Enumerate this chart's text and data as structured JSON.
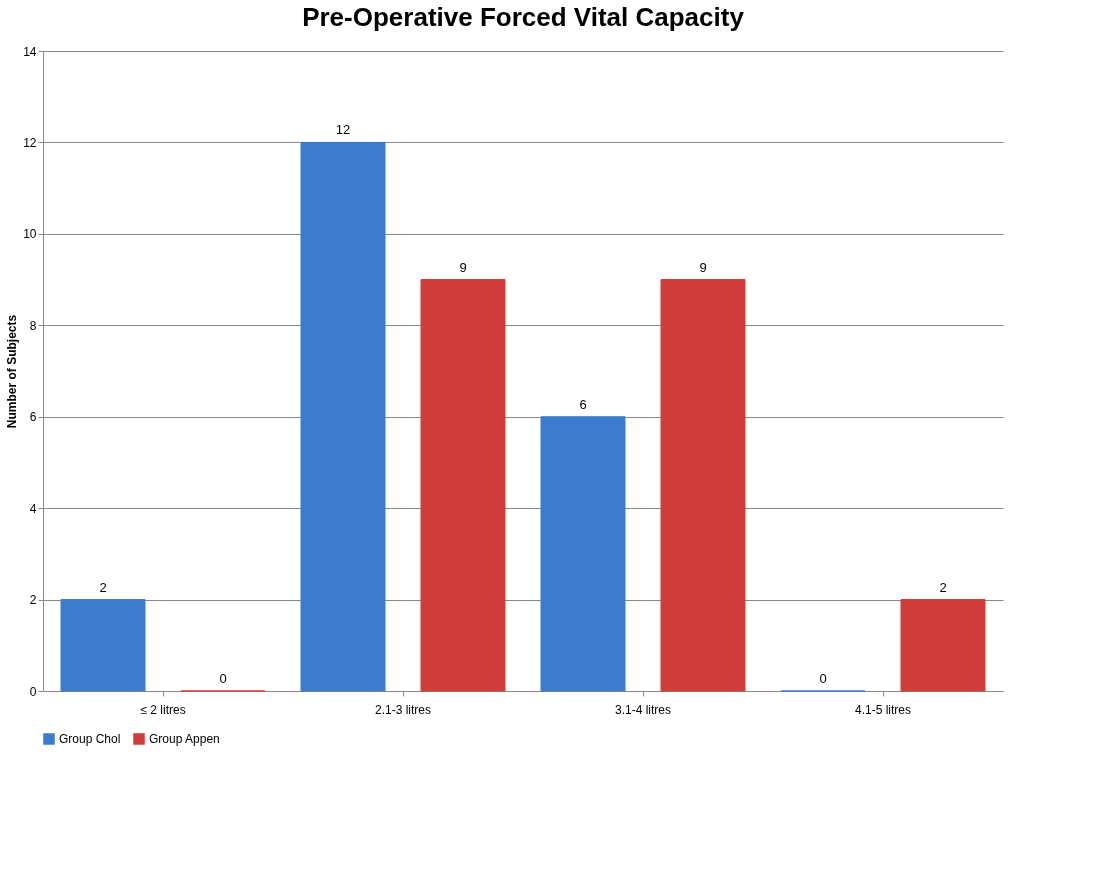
{
  "chart_data": {
    "type": "bar",
    "title": "Pre-Operative Forced Vital Capacity",
    "ylabel": "Number of Subjects",
    "categories": [
      "≤ 2 litres",
      "2.1-3 litres",
      "3.1-4 litres",
      "4.1-5 litres"
    ],
    "series": [
      {
        "name": "Group Chol",
        "color": "#3d7ccc",
        "values": [
          2,
          12,
          6,
          0
        ]
      },
      {
        "name": "Group Appen",
        "color": "#d03c3a",
        "values": [
          0,
          9,
          9,
          2
        ]
      }
    ],
    "ylim": [
      0,
      14
    ],
    "yticks": [
      0,
      2,
      4,
      6,
      8,
      10,
      12,
      14
    ],
    "grid": "y",
    "legend": "bottom",
    "data_labels": true
  }
}
